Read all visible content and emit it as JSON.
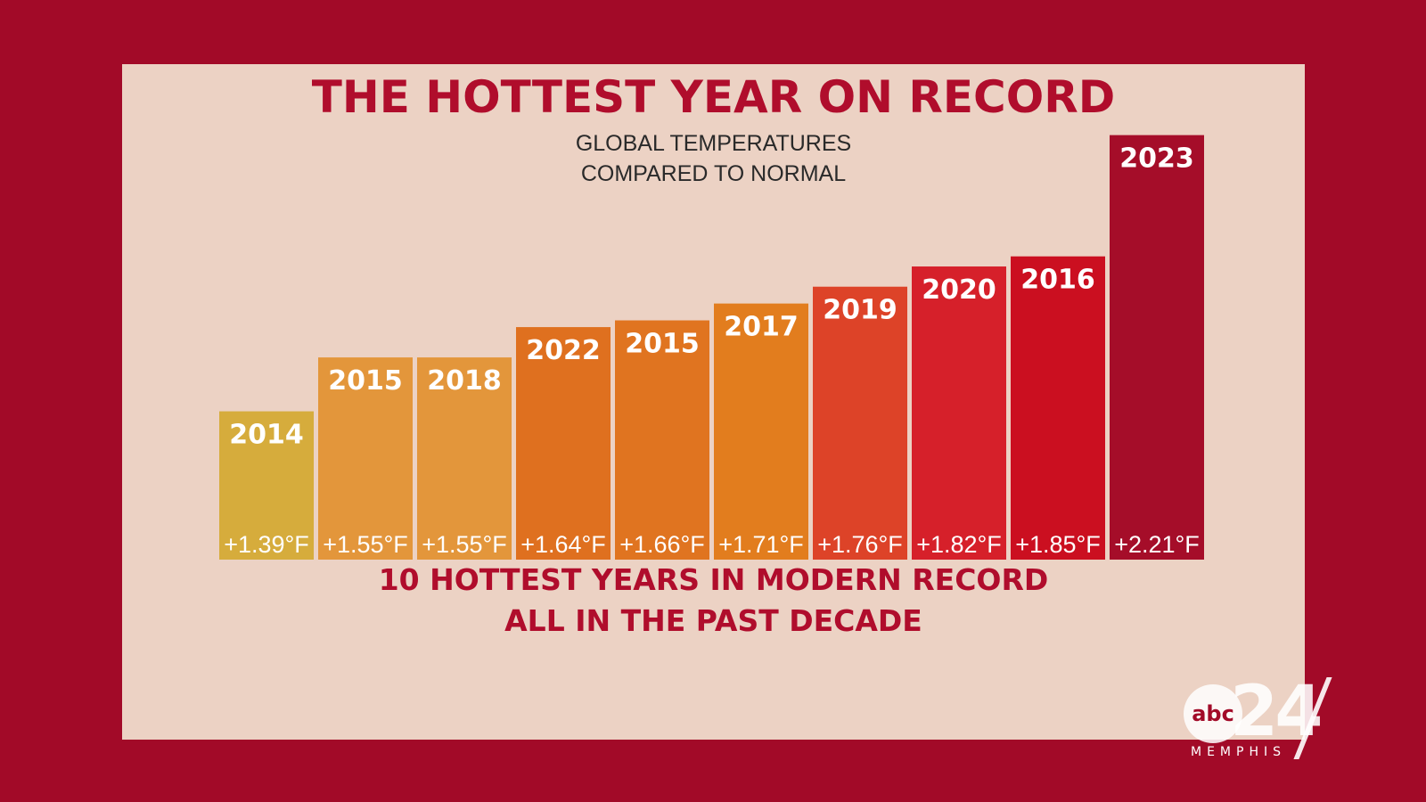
{
  "chart_data": {
    "type": "bar",
    "title": "THE HOTTEST YEAR ON RECORD",
    "subtitle": [
      "GLOBAL TEMPERATURES",
      "COMPARED TO NORMAL"
    ],
    "categories": [
      "2014",
      "2015",
      "2018",
      "2022",
      "2015",
      "2017",
      "2019",
      "2020",
      "2016",
      "2023"
    ],
    "values": [
      1.39,
      1.55,
      1.55,
      1.64,
      1.66,
      1.71,
      1.76,
      1.82,
      1.85,
      2.21
    ],
    "value_labels": [
      "+1.39°F",
      "+1.55°F",
      "+1.55°F",
      "+1.64°F",
      "+1.66°F",
      "+1.71°F",
      "+1.76°F",
      "+1.82°F",
      "+1.85°F",
      "+2.21°F"
    ],
    "bar_colors": [
      "#d6ac3c",
      "#e3963b",
      "#e3963b",
      "#df701f",
      "#e07420",
      "#e27d1e",
      "#dd4328",
      "#d6202a",
      "#cb0f20",
      "#a50d29"
    ],
    "unit": "°F",
    "footer": [
      "10 HOTTEST YEARS IN MODERN RECORD",
      "ALL IN THE PAST DECADE"
    ],
    "grid": false,
    "legend": "none",
    "xlabel": "",
    "ylabel": ""
  },
  "branding": {
    "station": "abc",
    "channel": "24",
    "city": "MEMPHIS"
  }
}
